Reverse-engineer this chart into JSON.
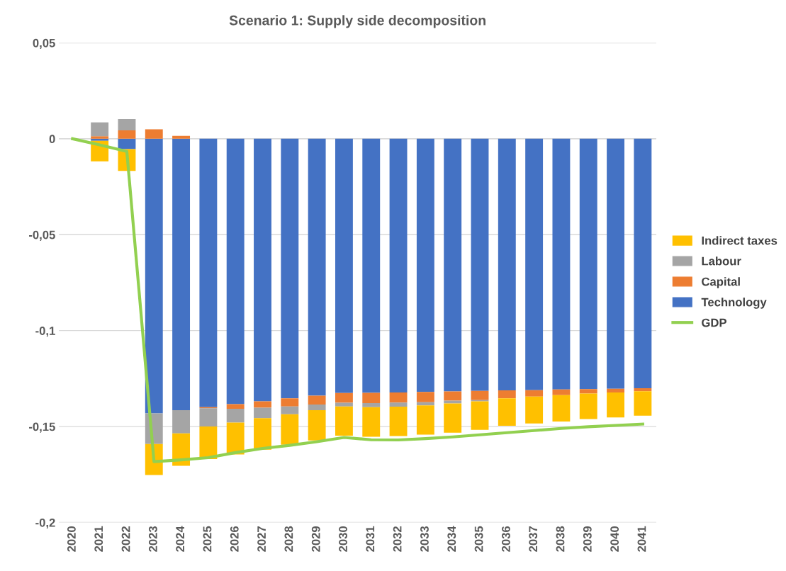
{
  "chart_data": {
    "type": "bar",
    "stacked": true,
    "title": "Scenario 1: Supply side decomposition",
    "categories": [
      "2020",
      "2021",
      "2022",
      "2023",
      "2024",
      "2025",
      "2026",
      "2027",
      "2028",
      "2029",
      "2030",
      "2031",
      "2032",
      "2033",
      "2034",
      "2035",
      "2036",
      "2037",
      "2038",
      "2039",
      "2040",
      "2041"
    ],
    "series": [
      {
        "name": "Technology",
        "color": "#4472c4",
        "values": [
          0,
          -0.0011,
          -0.0054,
          -0.1431,
          -0.1415,
          -0.1399,
          -0.1383,
          -0.1369,
          -0.1353,
          -0.1339,
          -0.1325,
          -0.1324,
          -0.1322,
          -0.132,
          -0.1317,
          -0.1314,
          -0.1311,
          -0.131,
          -0.1307,
          -0.1305,
          -0.1303,
          -0.13
        ]
      },
      {
        "name": "Capital",
        "color": "#ed7d31",
        "values": [
          0,
          0.0013,
          0.0044,
          0.0049,
          0.0015,
          -0.0006,
          -0.0024,
          -0.0033,
          -0.0042,
          -0.0046,
          -0.0051,
          -0.0054,
          -0.0053,
          -0.0053,
          -0.0048,
          -0.0048,
          -0.0042,
          -0.0034,
          -0.0029,
          -0.0023,
          -0.0019,
          -0.0016
        ]
      },
      {
        "name": "Labour",
        "color": "#a5a5a5",
        "values": [
          0,
          0.0072,
          0.0059,
          -0.016,
          -0.0121,
          -0.0095,
          -0.0072,
          -0.0054,
          -0.0041,
          -0.003,
          -0.0019,
          -0.0021,
          -0.0021,
          -0.0017,
          -0.0015,
          -0.0007,
          0,
          0,
          0,
          0,
          0,
          0
        ]
      },
      {
        "name": "Indirect taxes",
        "color": "#ffc000",
        "values": [
          0,
          -0.0107,
          -0.0114,
          -0.0162,
          -0.0169,
          -0.017,
          -0.0167,
          -0.0165,
          -0.0159,
          -0.0158,
          -0.0153,
          -0.0154,
          -0.0154,
          -0.0152,
          -0.0152,
          -0.0148,
          -0.0143,
          -0.014,
          -0.0138,
          -0.0133,
          -0.0131,
          -0.0127
        ]
      },
      {
        "name": "GDP",
        "type": "line",
        "color": "#92d050",
        "values": [
          0,
          -0.0032,
          -0.0066,
          -0.1683,
          -0.1674,
          -0.1662,
          -0.1636,
          -0.1614,
          -0.1598,
          -0.1579,
          -0.1557,
          -0.1569,
          -0.157,
          -0.1563,
          -0.1554,
          -0.1543,
          -0.1532,
          -0.1521,
          -0.151,
          -0.1501,
          -0.1494,
          -0.1487
        ]
      }
    ],
    "ylim": [
      -0.2,
      0.05
    ],
    "yticks": [
      {
        "value": 0.05,
        "label": "0,05"
      },
      {
        "value": 0,
        "label": "0"
      },
      {
        "value": -0.05,
        "label": "-0,05"
      },
      {
        "value": -0.1,
        "label": "-0,1"
      },
      {
        "value": -0.15,
        "label": "-0,15"
      },
      {
        "value": -0.2,
        "label": "-0,2"
      }
    ],
    "grid": "y",
    "legend": "right"
  }
}
